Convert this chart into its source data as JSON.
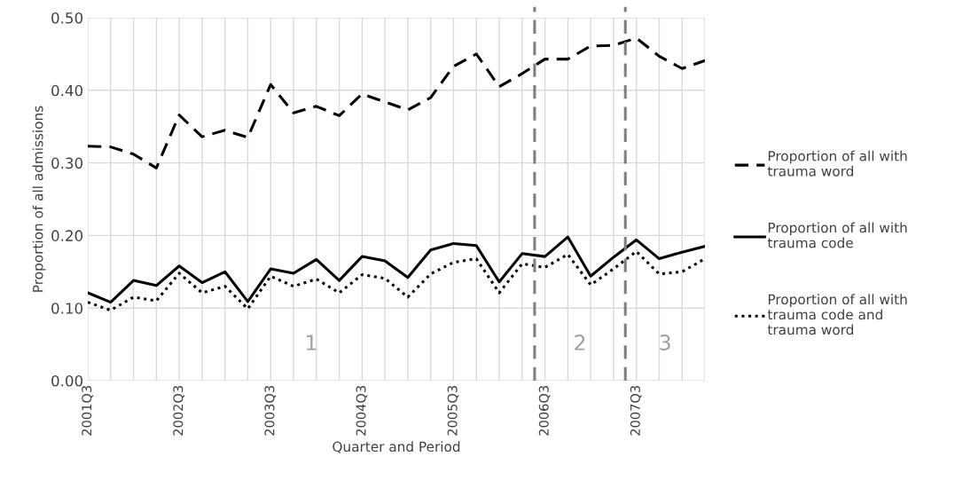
{
  "chart_data": {
    "type": "line",
    "xlabel": "Quarter and Period",
    "ylabel": "Proportion of all admissions",
    "categories": [
      "2001Q3",
      null,
      null,
      null,
      "2002Q3",
      null,
      null,
      null,
      "2003Q3",
      null,
      null,
      null,
      "2004Q3",
      null,
      null,
      null,
      "2005Q3",
      null,
      null,
      null,
      "2006Q3",
      null,
      null,
      null,
      "2007Q3",
      null,
      null,
      null
    ],
    "series": [
      {
        "name": "Proportion of all with\ntrauma word",
        "color": "#000000",
        "line_style": "dashed",
        "values": [
          0.323,
          0.322,
          0.312,
          0.293,
          0.366,
          0.336,
          0.345,
          0.335,
          0.408,
          0.369,
          0.378,
          0.365,
          0.395,
          0.384,
          0.373,
          0.39,
          0.433,
          0.45,
          0.405,
          0.423,
          0.443,
          0.443,
          0.461,
          0.462,
          0.472,
          0.447,
          0.43,
          0.441
        ]
      },
      {
        "name": "Proportion of all with\ntrauma code",
        "color": "#000000",
        "line_style": "solid",
        "values": [
          0.121,
          0.108,
          0.138,
          0.131,
          0.158,
          0.135,
          0.15,
          0.109,
          0.154,
          0.148,
          0.167,
          0.138,
          0.171,
          0.165,
          0.142,
          0.18,
          0.189,
          0.186,
          0.136,
          0.175,
          0.171,
          0.198,
          0.144,
          0.17,
          0.194,
          0.168,
          0.177,
          0.185
        ]
      },
      {
        "name": "Proportion of all with\ntrauma code and\ntrauma word",
        "color": "#000000",
        "line_style": "dotted",
        "values": [
          0.108,
          0.097,
          0.115,
          0.11,
          0.148,
          0.121,
          0.13,
          0.099,
          0.144,
          0.13,
          0.14,
          0.121,
          0.146,
          0.141,
          0.115,
          0.147,
          0.163,
          0.168,
          0.121,
          0.161,
          0.156,
          0.174,
          0.132,
          0.154,
          0.178,
          0.147,
          0.15,
          0.168
        ]
      }
    ],
    "ylim": [
      0,
      0.5
    ],
    "yticks": [
      {
        "value": 0,
        "label": "0.00"
      },
      {
        "value": 0.1,
        "label": "0.10"
      },
      {
        "value": 0.2,
        "label": "0.20"
      },
      {
        "value": 0.3,
        "label": "0.30"
      },
      {
        "value": 0.4,
        "label": "0.40"
      },
      {
        "value": 0.5,
        "label": "0.50"
      }
    ],
    "annotations": [
      "1",
      "2",
      "3"
    ],
    "grid": true,
    "legend": "right",
    "marker": "none"
  }
}
